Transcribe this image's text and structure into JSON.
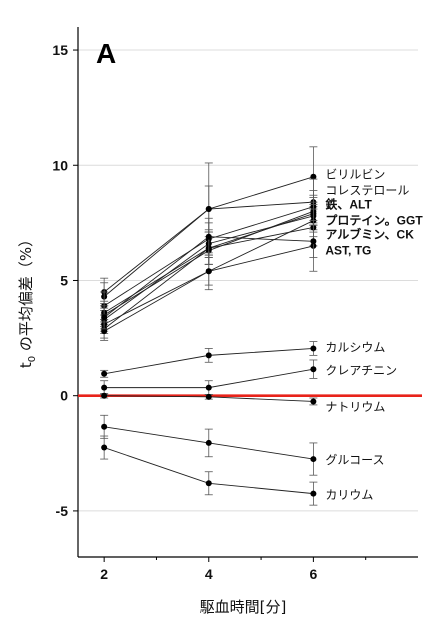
{
  "chart_data": {
    "type": "line",
    "panel_label": "A",
    "xlabel": "駆血時間[分]",
    "ylabel": "t",
    "ylabel_sub": "0",
    "ylabel_rest": " の平均偏差（%）",
    "x": [
      2,
      4,
      6
    ],
    "x_ticks": [
      "2",
      "4",
      "6"
    ],
    "y_ticks": [
      "-5",
      "0",
      "5",
      "10",
      "15"
    ],
    "ylim": [
      -7,
      16
    ],
    "grid": true,
    "reference_line": {
      "y": 0,
      "color": "#e8231a"
    },
    "series": [
      {
        "values": [
          4.5,
          8.1,
          9.5
        ],
        "err": [
          0.6,
          2.0,
          1.3
        ]
      },
      {
        "values": [
          4.3,
          8.1,
          8.4
        ],
        "err": [
          0.6,
          1.0,
          1.0
        ]
      },
      {
        "values": [
          3.9,
          6.8,
          8.2
        ],
        "err": [
          0.6,
          0.7,
          0.7
        ]
      },
      {
        "values": [
          3.6,
          6.4,
          7.9
        ],
        "err": [
          0.5,
          0.7,
          0.8
        ]
      },
      {
        "values": [
          3.5,
          6.3,
          8.0
        ],
        "err": [
          0.5,
          0.6,
          0.6
        ]
      },
      {
        "values": [
          3.3,
          6.6,
          7.8
        ],
        "err": [
          0.5,
          0.6,
          0.6
        ]
      },
      {
        "values": [
          3.1,
          5.4,
          7.6
        ],
        "err": [
          0.4,
          0.6,
          0.7
        ]
      },
      {
        "values": [
          2.9,
          6.4,
          7.3
        ],
        "err": [
          0.4,
          0.7,
          0.8
        ]
      },
      {
        "values": [
          2.8,
          5.4,
          6.5
        ],
        "err": [
          0.4,
          0.8,
          1.1
        ]
      },
      {
        "values": [
          3.4,
          6.9,
          6.7
        ],
        "err": [
          0.5,
          0.8,
          0.7
        ]
      },
      {
        "values": [
          0.95,
          1.75,
          2.05
        ],
        "err": [
          0.15,
          0.3,
          0.3
        ]
      },
      {
        "values": [
          0.35,
          0.35,
          1.15
        ],
        "err": [
          0.3,
          0.3,
          0.4
        ]
      },
      {
        "values": [
          0.0,
          -0.05,
          -0.25
        ],
        "err": [
          0.1,
          0.1,
          0.15
        ]
      },
      {
        "values": [
          -1.35,
          -2.05,
          -2.75
        ],
        "err": [
          0.5,
          0.6,
          0.7
        ]
      },
      {
        "values": [
          -2.25,
          -3.8,
          -4.25
        ],
        "err": [
          0.5,
          0.5,
          0.5
        ]
      }
    ],
    "labels": [
      {
        "text": "ビリルビン",
        "y": 9.6,
        "bold": false
      },
      {
        "text": "コレステロール",
        "y": 8.9,
        "bold": false
      },
      {
        "text": "鉄、ALT",
        "y": 8.3,
        "bold": true
      },
      {
        "text": "プロテイン。GGT",
        "y": 7.6,
        "bold": true
      },
      {
        "text": "アルブミン、CK",
        "y": 7.0,
        "bold": true
      },
      {
        "text": "AST, TG",
        "y": 6.3,
        "bold": true
      },
      {
        "text": "カルシウム",
        "y": 2.1,
        "bold": false
      },
      {
        "text": "クレアチニン",
        "y": 1.1,
        "bold": false
      },
      {
        "text": "ナトリウム",
        "y": -0.5,
        "bold": false
      },
      {
        "text": "グルコース",
        "y": -2.8,
        "bold": false
      },
      {
        "text": "カリウム",
        "y": -4.3,
        "bold": false
      }
    ]
  }
}
